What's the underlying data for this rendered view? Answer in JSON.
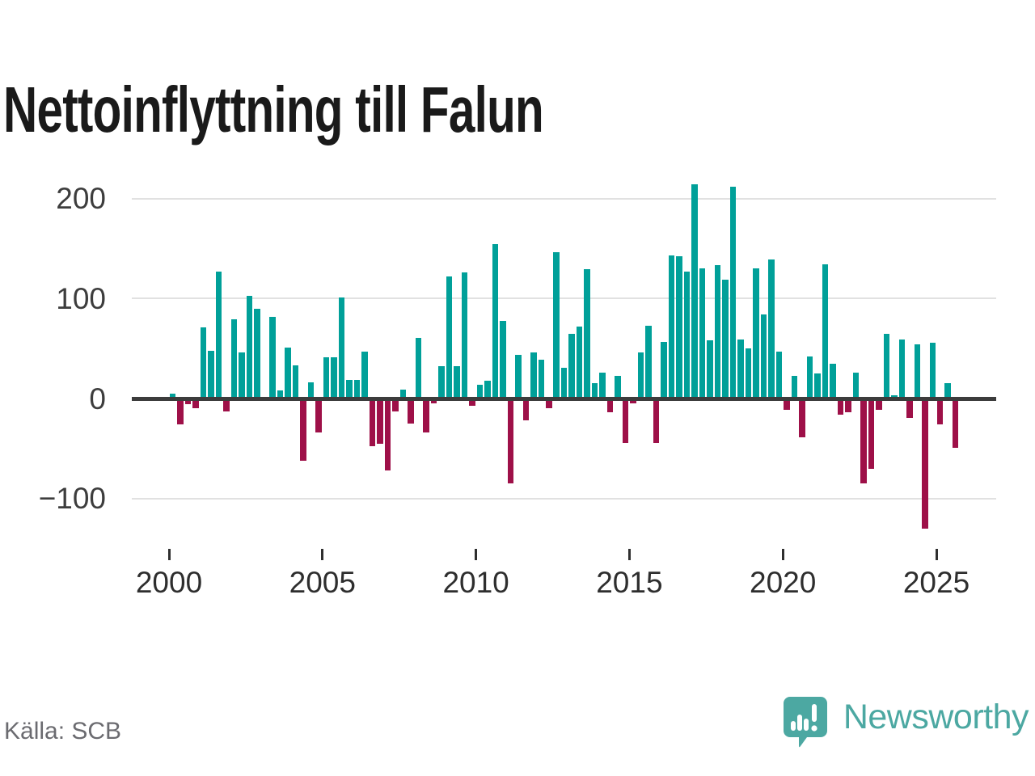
{
  "title": "Nettoinflyttning till Falun",
  "source": "Källa: SCB",
  "branding": {
    "name": "Newsworthy",
    "icon": "newsworthy-speech-bubble-chart-icon"
  },
  "colors": {
    "positive_bar": "#00A099",
    "negative_bar": "#9E1048",
    "axis": "#3C3C3C",
    "gridline": "#E1E1E1",
    "brand_teal": "#4CA8A2",
    "title_text": "#1A1A1A",
    "tick_text": "#2E2E2E",
    "source_text": "#6B6B70"
  },
  "chart_data": {
    "type": "bar",
    "title": "Nettoinflyttning till Falun",
    "frequency": "quarterly",
    "xlabel": "",
    "ylabel": "",
    "x_tick_labels": [
      "2000",
      "2005",
      "2010",
      "2015",
      "2020",
      "2025"
    ],
    "y_ticks": [
      200,
      100,
      0,
      -100
    ],
    "y_tick_labels": [
      "200",
      "100",
      "0",
      "−100"
    ],
    "ylim": [
      -150,
      230
    ],
    "grid": "horizontal",
    "legend": "none",
    "values_by_year": [
      {
        "year": 2000,
        "values": [
          5,
          -26,
          -6,
          -10
        ]
      },
      {
        "year": 2001,
        "values": [
          71,
          48,
          127,
          -13
        ]
      },
      {
        "year": 2002,
        "values": [
          79,
          46,
          103,
          90
        ]
      },
      {
        "year": 2003,
        "values": [
          0,
          82,
          8,
          51
        ]
      },
      {
        "year": 2004,
        "values": [
          33,
          -62,
          16,
          -34
        ]
      },
      {
        "year": 2005,
        "values": [
          41,
          41,
          101,
          19
        ]
      },
      {
        "year": 2006,
        "values": [
          19,
          47,
          -48,
          -45
        ]
      },
      {
        "year": 2007,
        "values": [
          -72,
          -13,
          9,
          -25
        ]
      },
      {
        "year": 2008,
        "values": [
          61,
          -34,
          -5,
          32
        ]
      },
      {
        "year": 2009,
        "values": [
          122,
          32,
          126,
          -7
        ]
      },
      {
        "year": 2010,
        "values": [
          14,
          18,
          154,
          78
        ]
      },
      {
        "year": 2011,
        "values": [
          -85,
          44,
          -22,
          46
        ]
      },
      {
        "year": 2012,
        "values": [
          39,
          -10,
          146,
          31
        ]
      },
      {
        "year": 2013,
        "values": [
          65,
          72,
          129,
          15
        ]
      },
      {
        "year": 2014,
        "values": [
          26,
          -14,
          23,
          -44
        ]
      },
      {
        "year": 2015,
        "values": [
          -5,
          46,
          73,
          -44
        ]
      },
      {
        "year": 2016,
        "values": [
          57,
          143,
          142,
          127
        ]
      },
      {
        "year": 2017,
        "values": [
          214,
          130,
          58,
          133
        ]
      },
      {
        "year": 2018,
        "values": [
          119,
          212,
          59,
          50
        ]
      },
      {
        "year": 2019,
        "values": [
          130,
          84,
          139,
          47
        ]
      },
      {
        "year": 2020,
        "values": [
          -11,
          23,
          -39,
          42
        ]
      },
      {
        "year": 2021,
        "values": [
          25,
          134,
          35,
          -16
        ]
      },
      {
        "year": 2022,
        "values": [
          -14,
          26,
          -85,
          -70
        ]
      },
      {
        "year": 2023,
        "values": [
          -11,
          65,
          3,
          59
        ]
      },
      {
        "year": 2024,
        "values": [
          -19,
          54,
          -130,
          56
        ]
      },
      {
        "year": 2025,
        "values": [
          -26,
          15,
          -49
        ]
      }
    ]
  }
}
